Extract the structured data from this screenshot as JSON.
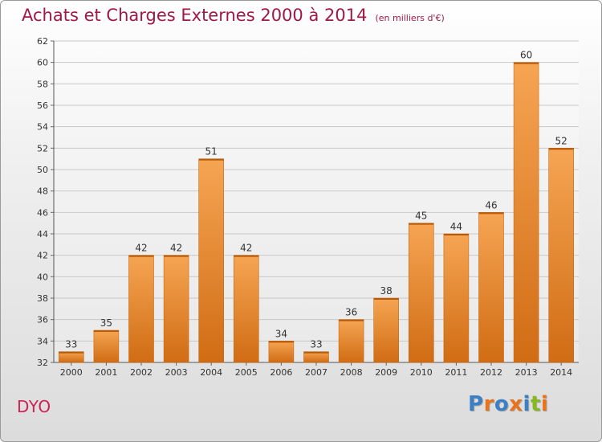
{
  "header": {
    "title": "Achats et Charges Externes 2000 à 2014",
    "unit": "(en milliers d'€)"
  },
  "footer": {
    "commune": "DYO",
    "brand": "Proxiti",
    "brand_colors": [
      "#3b7fc4",
      "#e8731a",
      "#3b7fc4",
      "#e8731a",
      "#3b7fc4",
      "#88b820",
      "#e8731a"
    ]
  },
  "colors": {
    "bar_light": "#f6a553",
    "bar_dark": "#d06c14",
    "title": "#a01848",
    "commune": "#cc2255"
  },
  "chart_data": {
    "type": "bar",
    "title": "Achats et Charges Externes 2000 à 2014",
    "subtitle": "(en milliers d'€)",
    "xlabel": "",
    "ylabel": "",
    "categories": [
      "2000",
      "2001",
      "2002",
      "2003",
      "2004",
      "2005",
      "2006",
      "2007",
      "2008",
      "2009",
      "2010",
      "2011",
      "2012",
      "2013",
      "2014"
    ],
    "values": [
      33,
      35,
      42,
      42,
      51,
      42,
      34,
      33,
      36,
      38,
      45,
      44,
      46,
      60,
      52
    ],
    "ylim": [
      32,
      62
    ],
    "yticks": [
      32,
      34,
      36,
      38,
      40,
      42,
      44,
      46,
      48,
      50,
      52,
      54,
      56,
      58,
      60,
      62
    ],
    "grid": true,
    "legend": "none"
  }
}
